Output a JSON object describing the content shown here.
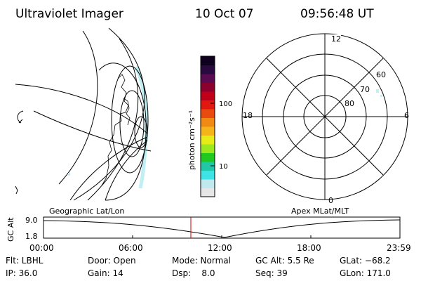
{
  "header": {
    "instrument": "Ultraviolet Imager",
    "date": "10 Oct 07",
    "time": "09:56:48 UT"
  },
  "colorbar": {
    "label": "photon cm⁻²s⁻¹",
    "ticks": [
      "100",
      "10"
    ],
    "colors": [
      "#e6e6e6",
      "#bfe9ef",
      "#3fe3e6",
      "#20c8a8",
      "#20c820",
      "#9be81e",
      "#e8ec16",
      "#f4b51a",
      "#f08a14",
      "#e84a10",
      "#e01810",
      "#c00018",
      "#8c0030",
      "#5a0a50",
      "#2a0840",
      "#100020"
    ]
  },
  "polar_plot": {
    "mlt_labels": {
      "top": "12",
      "bottom": "0",
      "left": "18",
      "right": "6"
    },
    "lat_labels": [
      "60",
      "70",
      "80"
    ]
  },
  "left_plot": {
    "label": "Geographic Lat/Lon"
  },
  "right_plot": {
    "label": "Apex MLat/MLT"
  },
  "altitude_panel": {
    "ylabel": "GC Alt",
    "yticks": [
      "9.0",
      "1.8"
    ],
    "xticks": [
      "00:00",
      "06:00",
      "12:00",
      "18:00",
      "23:59"
    ]
  },
  "info": {
    "flt": "Flt: LBHL",
    "ip": "IP: 36.0",
    "door": "Door: Open",
    "gain": "Gain: 14",
    "mode": "Mode: Normal",
    "dsp": "Dsp:    8.0",
    "gcalt": "GC Alt: 5.5 Re",
    "seq": "Seq: 39",
    "glat": "GLat: −68.2",
    "glon": "GLon: 171.0"
  },
  "colors": {
    "marker": "#cc0000",
    "line": "#000000",
    "glow": "#bfeef4"
  }
}
